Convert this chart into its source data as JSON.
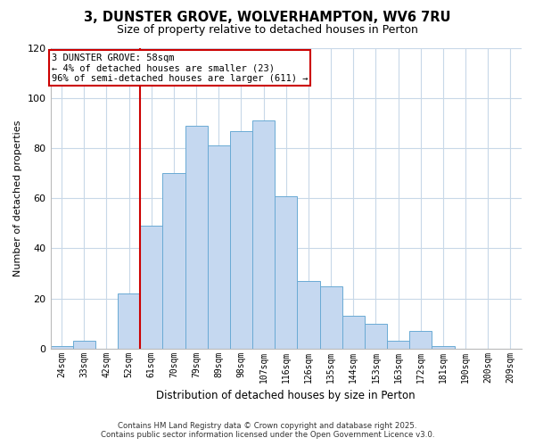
{
  "title": "3, DUNSTER GROVE, WOLVERHAMPTON, WV6 7RU",
  "subtitle": "Size of property relative to detached houses in Perton",
  "xlabel": "Distribution of detached houses by size in Perton",
  "ylabel": "Number of detached properties",
  "bar_labels": [
    "24sqm",
    "33sqm",
    "42sqm",
    "52sqm",
    "61sqm",
    "70sqm",
    "79sqm",
    "89sqm",
    "98sqm",
    "107sqm",
    "116sqm",
    "126sqm",
    "135sqm",
    "144sqm",
    "153sqm",
    "163sqm",
    "172sqm",
    "181sqm",
    "190sqm",
    "200sqm",
    "209sqm"
  ],
  "bar_values": [
    1,
    3,
    0,
    22,
    49,
    70,
    89,
    81,
    87,
    91,
    61,
    27,
    25,
    13,
    10,
    3,
    7,
    1,
    0,
    0,
    0
  ],
  "bar_color": "#c5d8f0",
  "bar_edge_color": "#6aaad4",
  "vline_color": "#cc0000",
  "ylim": [
    0,
    120
  ],
  "yticks": [
    0,
    20,
    40,
    60,
    80,
    100,
    120
  ],
  "annotation_line1": "3 DUNSTER GROVE: 58sqm",
  "annotation_line2": "← 4% of detached houses are smaller (23)",
  "annotation_line3": "96% of semi-detached houses are larger (611) →",
  "annotation_box_color": "#ffffff",
  "annotation_box_edgecolor": "#cc0000",
  "footer_line1": "Contains HM Land Registry data © Crown copyright and database right 2025.",
  "footer_line2": "Contains public sector information licensed under the Open Government Licence v3.0.",
  "background_color": "#ffffff",
  "grid_color": "#c8d8e8"
}
